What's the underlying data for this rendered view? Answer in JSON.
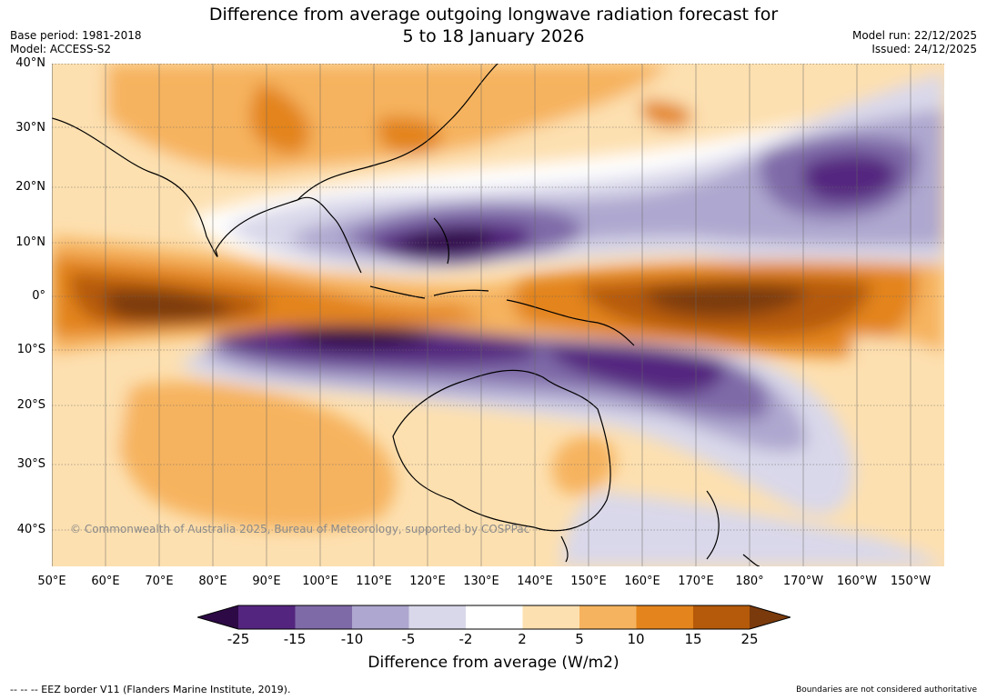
{
  "header": {
    "title_line1": "Difference from average outgoing longwave radiation forecast for",
    "title_line2": "5 to 18 January 2026",
    "base_period": "Base period: 1981-2018",
    "model": "Model: ACCESS-S2",
    "model_run": "Model run: 22/12/2025",
    "issued": "Issued: 24/12/2025"
  },
  "map": {
    "lat_labels": [
      "40°N",
      "30°N",
      "20°N",
      "10°N",
      "0°",
      "10°S",
      "20°S",
      "30°S",
      "40°S"
    ],
    "lon_labels": [
      "50°E",
      "60°E",
      "70°E",
      "80°E",
      "90°E",
      "100°E",
      "110°E",
      "120°E",
      "130°E",
      "140°E",
      "150°E",
      "160°E",
      "170°E",
      "180°",
      "170°W",
      "160°W",
      "150°W"
    ],
    "copyright": "© Commonwealth of Australia 2025, Bureau of Meteorology, supported by COSPPac"
  },
  "colorbar": {
    "ticks": [
      "-25",
      "-15",
      "-10",
      "-5",
      "-2",
      "2",
      "5",
      "10",
      "15",
      "25"
    ],
    "title": "Difference from average (W/m2)",
    "colors": {
      "below": "#2d0a45",
      "c1": "#54257f",
      "c2": "#7f6aa8",
      "c3": "#aea7cf",
      "c4": "#d9d8ea",
      "c5": "#ffffff",
      "c6": "#fde0b0",
      "c7": "#f6b35f",
      "c8": "#e3841c",
      "c9": "#b55a0a",
      "above": "#7a3a0c"
    }
  },
  "footer": {
    "eez_note": "--  --  -- EEZ border V11 (Flanders Marine Institute, 2019).",
    "boundaries_note": "Boundaries are not considered authoritative"
  }
}
